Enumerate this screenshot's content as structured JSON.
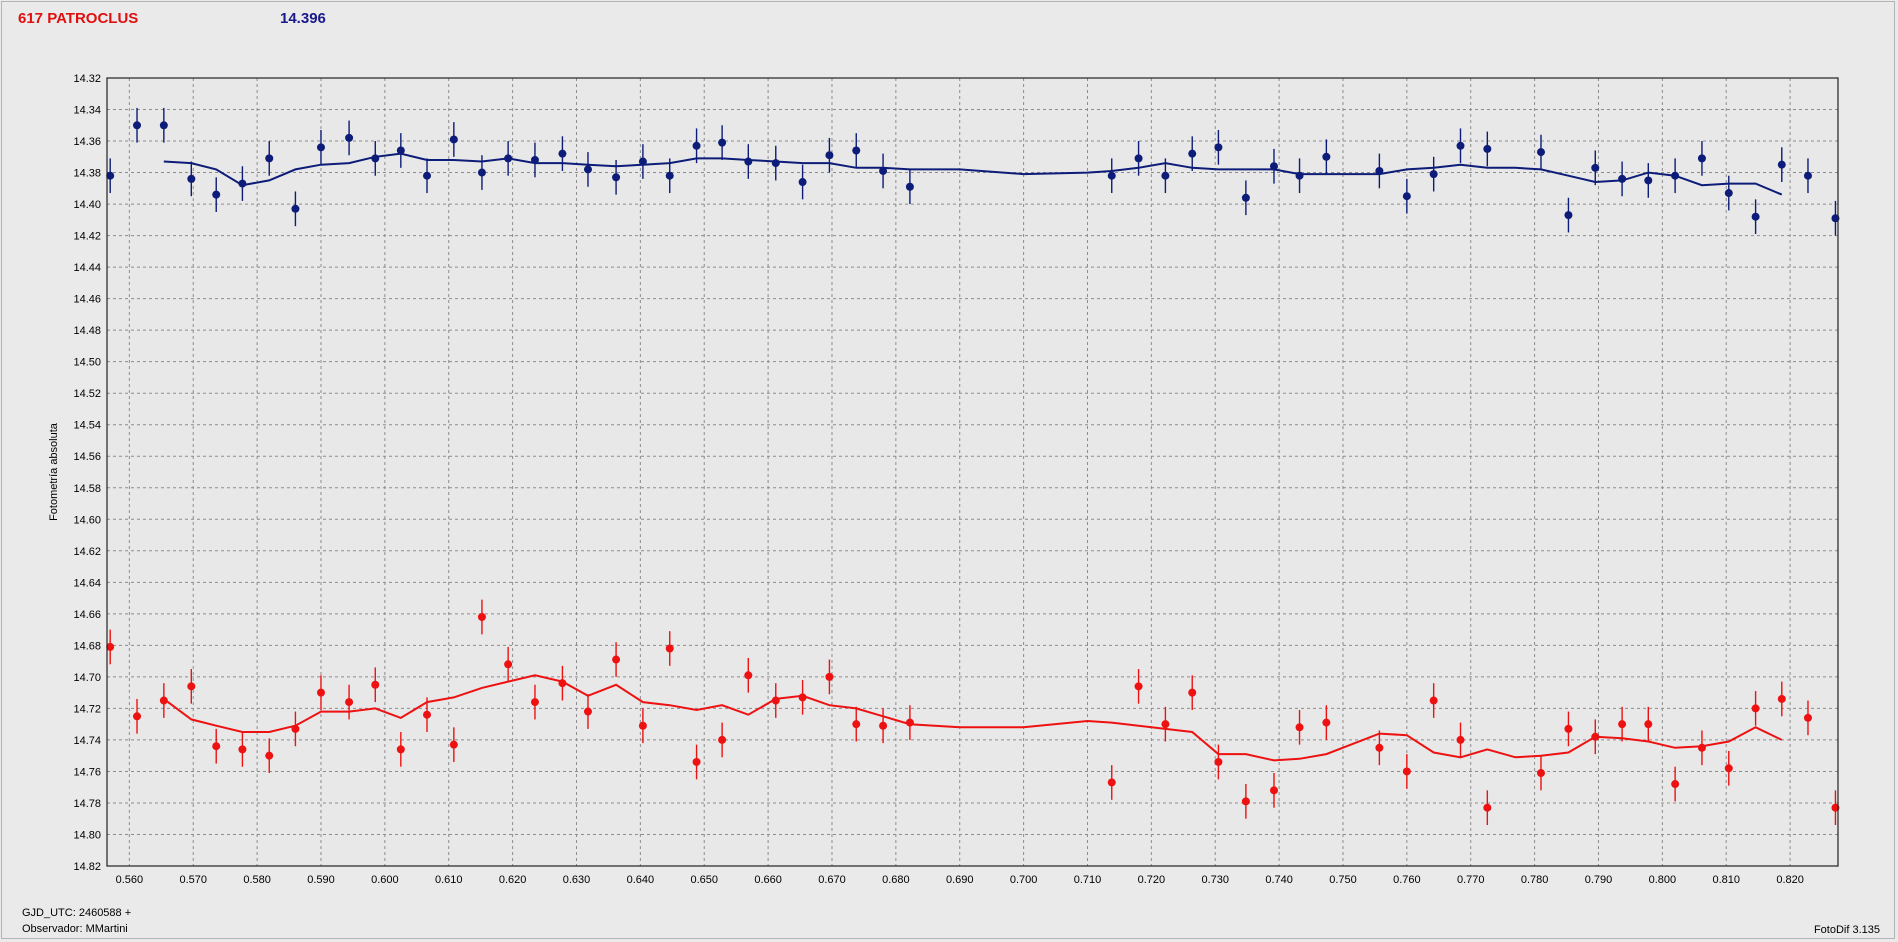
{
  "header": {
    "object_name": "617 PATROCLUS",
    "magnitude": "14.396"
  },
  "footer": {
    "gjd": "GJD_UTC: 2460588 +",
    "observer": "Observador: MMartini",
    "software": "FotoDif 3.135"
  },
  "colors": {
    "series_blue": "#0c1c78",
    "series_red": "#ee1111",
    "grid": "#8c8c8c",
    "plot_bg": "#e8e8e8",
    "title_red": "#e01010",
    "title_blue": "#1a1a8c"
  },
  "chart_data": {
    "type": "scatter",
    "title": "",
    "xlabel": "",
    "ylabel": "Fotometría absoluta",
    "xlim": [
      0.5565,
      0.8275
    ],
    "ylim": [
      14.82,
      14.32
    ],
    "y_inverted": true,
    "grid": true,
    "x_ticks": [
      "0.560",
      "0.570",
      "0.580",
      "0.590",
      "0.600",
      "0.610",
      "0.620",
      "0.630",
      "0.640",
      "0.650",
      "0.660",
      "0.670",
      "0.680",
      "0.690",
      "0.700",
      "0.710",
      "0.720",
      "0.730",
      "0.740",
      "0.750",
      "0.760",
      "0.770",
      "0.780",
      "0.790",
      "0.800",
      "0.810",
      "0.820"
    ],
    "y_ticks": [
      "14.32",
      "14.34",
      "14.36",
      "14.38",
      "14.40",
      "14.42",
      "14.44",
      "14.46",
      "14.48",
      "14.50",
      "14.52",
      "14.54",
      "14.56",
      "14.58",
      "14.60",
      "14.62",
      "14.64",
      "14.66",
      "14.68",
      "14.70",
      "14.72",
      "14.74",
      "14.76",
      "14.78",
      "14.80",
      "14.82"
    ],
    "series": [
      {
        "color": "#0c1c78",
        "error": 0.011,
        "points": [
          [
            0.557,
            14.382
          ],
          [
            0.5612,
            14.35
          ],
          [
            0.5654,
            14.35
          ],
          [
            0.5697,
            14.384
          ],
          [
            0.5736,
            14.394
          ],
          [
            0.5777,
            14.387
          ],
          [
            0.5819,
            14.371
          ],
          [
            0.586,
            14.403
          ],
          [
            0.59,
            14.364
          ],
          [
            0.5944,
            14.358
          ],
          [
            0.5985,
            14.371
          ],
          [
            0.6025,
            14.366
          ],
          [
            0.6066,
            14.382
          ],
          [
            0.6108,
            14.359
          ],
          [
            0.6152,
            14.38
          ],
          [
            0.6193,
            14.371
          ],
          [
            0.6235,
            14.372
          ],
          [
            0.6278,
            14.368
          ],
          [
            0.6318,
            14.378
          ],
          [
            0.6362,
            14.383
          ],
          [
            0.6404,
            14.373
          ],
          [
            0.6446,
            14.382
          ],
          [
            0.6488,
            14.363
          ],
          [
            0.6528,
            14.361
          ],
          [
            0.6569,
            14.373
          ],
          [
            0.6612,
            14.374
          ],
          [
            0.6654,
            14.386
          ],
          [
            0.6696,
            14.369
          ],
          [
            0.6738,
            14.366
          ],
          [
            0.678,
            14.379
          ],
          [
            0.6822,
            14.389
          ],
          [
            0.7138,
            14.382
          ],
          [
            0.718,
            14.371
          ],
          [
            0.7222,
            14.382
          ],
          [
            0.7264,
            14.368
          ],
          [
            0.7305,
            14.364
          ],
          [
            0.7348,
            14.396
          ],
          [
            0.7392,
            14.376
          ],
          [
            0.7432,
            14.382
          ],
          [
            0.7474,
            14.37
          ],
          [
            0.7557,
            14.379
          ],
          [
            0.76,
            14.395
          ],
          [
            0.7642,
            14.381
          ],
          [
            0.7684,
            14.363
          ],
          [
            0.7726,
            14.365
          ],
          [
            0.781,
            14.367
          ],
          [
            0.7853,
            14.407
          ],
          [
            0.7895,
            14.377
          ],
          [
            0.7937,
            14.384
          ],
          [
            0.7978,
            14.385
          ],
          [
            0.802,
            14.382
          ],
          [
            0.8062,
            14.371
          ],
          [
            0.8104,
            14.393
          ],
          [
            0.8146,
            14.408
          ],
          [
            0.8187,
            14.375
          ],
          [
            0.8228,
            14.382
          ],
          [
            0.8271,
            14.409
          ]
        ],
        "trend": [
          [
            0.5654,
            14.373
          ],
          [
            0.5697,
            14.374
          ],
          [
            0.5736,
            14.378
          ],
          [
            0.5777,
            14.388
          ],
          [
            0.5819,
            14.385
          ],
          [
            0.586,
            14.378
          ],
          [
            0.59,
            14.375
          ],
          [
            0.5944,
            14.374
          ],
          [
            0.5985,
            14.37
          ],
          [
            0.6025,
            14.368
          ],
          [
            0.6066,
            14.372
          ],
          [
            0.6108,
            14.372
          ],
          [
            0.6152,
            14.373
          ],
          [
            0.6193,
            14.371
          ],
          [
            0.6235,
            14.374
          ],
          [
            0.6278,
            14.374
          ],
          [
            0.6318,
            14.375
          ],
          [
            0.6362,
            14.376
          ],
          [
            0.6404,
            14.375
          ],
          [
            0.6446,
            14.374
          ],
          [
            0.6488,
            14.371
          ],
          [
            0.6528,
            14.371
          ],
          [
            0.6569,
            14.372
          ],
          [
            0.6612,
            14.373
          ],
          [
            0.6654,
            14.374
          ],
          [
            0.6696,
            14.374
          ],
          [
            0.6738,
            14.377
          ],
          [
            0.678,
            14.377
          ],
          [
            0.6822,
            14.378
          ],
          [
            0.69,
            14.378
          ],
          [
            0.7,
            14.381
          ],
          [
            0.71,
            14.38
          ],
          [
            0.7138,
            14.379
          ],
          [
            0.718,
            14.377
          ],
          [
            0.7222,
            14.374
          ],
          [
            0.7264,
            14.377
          ],
          [
            0.7305,
            14.378
          ],
          [
            0.7348,
            14.378
          ],
          [
            0.7392,
            14.378
          ],
          [
            0.7432,
            14.381
          ],
          [
            0.7474,
            14.381
          ],
          [
            0.7557,
            14.381
          ],
          [
            0.76,
            14.378
          ],
          [
            0.7642,
            14.377
          ],
          [
            0.7684,
            14.375
          ],
          [
            0.7726,
            14.377
          ],
          [
            0.777,
            14.377
          ],
          [
            0.781,
            14.378
          ],
          [
            0.7853,
            14.382
          ],
          [
            0.7895,
            14.386
          ],
          [
            0.7937,
            14.385
          ],
          [
            0.7978,
            14.38
          ],
          [
            0.802,
            14.382
          ],
          [
            0.8062,
            14.388
          ],
          [
            0.8104,
            14.387
          ],
          [
            0.8146,
            14.387
          ],
          [
            0.8187,
            14.394
          ]
        ]
      },
      {
        "color": "#ee1111",
        "error": 0.011,
        "points": [
          [
            0.557,
            14.681
          ],
          [
            0.5612,
            14.725
          ],
          [
            0.5654,
            14.715
          ],
          [
            0.5697,
            14.706
          ],
          [
            0.5736,
            14.744
          ],
          [
            0.5777,
            14.746
          ],
          [
            0.5819,
            14.75
          ],
          [
            0.586,
            14.733
          ],
          [
            0.59,
            14.71
          ],
          [
            0.5944,
            14.716
          ],
          [
            0.5985,
            14.705
          ],
          [
            0.6025,
            14.746
          ],
          [
            0.6066,
            14.724
          ],
          [
            0.6108,
            14.743
          ],
          [
            0.6152,
            14.662
          ],
          [
            0.6193,
            14.692
          ],
          [
            0.6235,
            14.716
          ],
          [
            0.6278,
            14.704
          ],
          [
            0.6318,
            14.722
          ],
          [
            0.6362,
            14.689
          ],
          [
            0.6404,
            14.731
          ],
          [
            0.6446,
            14.682
          ],
          [
            0.6488,
            14.754
          ],
          [
            0.6528,
            14.74
          ],
          [
            0.6569,
            14.699
          ],
          [
            0.6612,
            14.715
          ],
          [
            0.6654,
            14.713
          ],
          [
            0.6696,
            14.7
          ],
          [
            0.6738,
            14.73
          ],
          [
            0.678,
            14.731
          ],
          [
            0.6822,
            14.729
          ],
          [
            0.7138,
            14.767
          ],
          [
            0.718,
            14.706
          ],
          [
            0.7222,
            14.73
          ],
          [
            0.7264,
            14.71
          ],
          [
            0.7305,
            14.754
          ],
          [
            0.7348,
            14.779
          ],
          [
            0.7392,
            14.772
          ],
          [
            0.7432,
            14.732
          ],
          [
            0.7474,
            14.729
          ],
          [
            0.7557,
            14.745
          ],
          [
            0.76,
            14.76
          ],
          [
            0.7642,
            14.715
          ],
          [
            0.7684,
            14.74
          ],
          [
            0.7726,
            14.783
          ],
          [
            0.781,
            14.761
          ],
          [
            0.7853,
            14.733
          ],
          [
            0.7895,
            14.738
          ],
          [
            0.7937,
            14.73
          ],
          [
            0.7978,
            14.73
          ],
          [
            0.802,
            14.768
          ],
          [
            0.8062,
            14.745
          ],
          [
            0.8104,
            14.758
          ],
          [
            0.8146,
            14.72
          ],
          [
            0.8187,
            14.714
          ],
          [
            0.8228,
            14.726
          ],
          [
            0.8271,
            14.783
          ]
        ],
        "trend": [
          [
            0.5654,
            14.714
          ],
          [
            0.5697,
            14.727
          ],
          [
            0.5736,
            14.731
          ],
          [
            0.5777,
            14.735
          ],
          [
            0.5819,
            14.735
          ],
          [
            0.586,
            14.731
          ],
          [
            0.59,
            14.722
          ],
          [
            0.5944,
            14.722
          ],
          [
            0.5985,
            14.72
          ],
          [
            0.6025,
            14.726
          ],
          [
            0.6066,
            14.716
          ],
          [
            0.6108,
            14.713
          ],
          [
            0.6152,
            14.707
          ],
          [
            0.6193,
            14.703
          ],
          [
            0.6235,
            14.699
          ],
          [
            0.6278,
            14.703
          ],
          [
            0.6318,
            14.712
          ],
          [
            0.6362,
            14.705
          ],
          [
            0.6404,
            14.716
          ],
          [
            0.6446,
            14.718
          ],
          [
            0.6488,
            14.721
          ],
          [
            0.6528,
            14.718
          ],
          [
            0.6569,
            14.724
          ],
          [
            0.6612,
            14.714
          ],
          [
            0.6654,
            14.712
          ],
          [
            0.6696,
            14.718
          ],
          [
            0.6738,
            14.72
          ],
          [
            0.678,
            14.725
          ],
          [
            0.6822,
            14.73
          ],
          [
            0.69,
            14.732
          ],
          [
            0.7,
            14.732
          ],
          [
            0.71,
            14.728
          ],
          [
            0.7138,
            14.729
          ],
          [
            0.718,
            14.731
          ],
          [
            0.7222,
            14.733
          ],
          [
            0.7264,
            14.735
          ],
          [
            0.7305,
            14.749
          ],
          [
            0.7348,
            14.749
          ],
          [
            0.7392,
            14.753
          ],
          [
            0.7432,
            14.752
          ],
          [
            0.7474,
            14.749
          ],
          [
            0.7557,
            14.736
          ],
          [
            0.76,
            14.737
          ],
          [
            0.7642,
            14.748
          ],
          [
            0.7684,
            14.751
          ],
          [
            0.7726,
            14.746
          ],
          [
            0.777,
            14.751
          ],
          [
            0.781,
            14.75
          ],
          [
            0.7853,
            14.748
          ],
          [
            0.7895,
            14.738
          ],
          [
            0.7937,
            14.739
          ],
          [
            0.7978,
            14.741
          ],
          [
            0.802,
            14.745
          ],
          [
            0.8062,
            14.744
          ],
          [
            0.8104,
            14.741
          ],
          [
            0.8146,
            14.732
          ],
          [
            0.8187,
            14.74
          ]
        ]
      }
    ]
  }
}
